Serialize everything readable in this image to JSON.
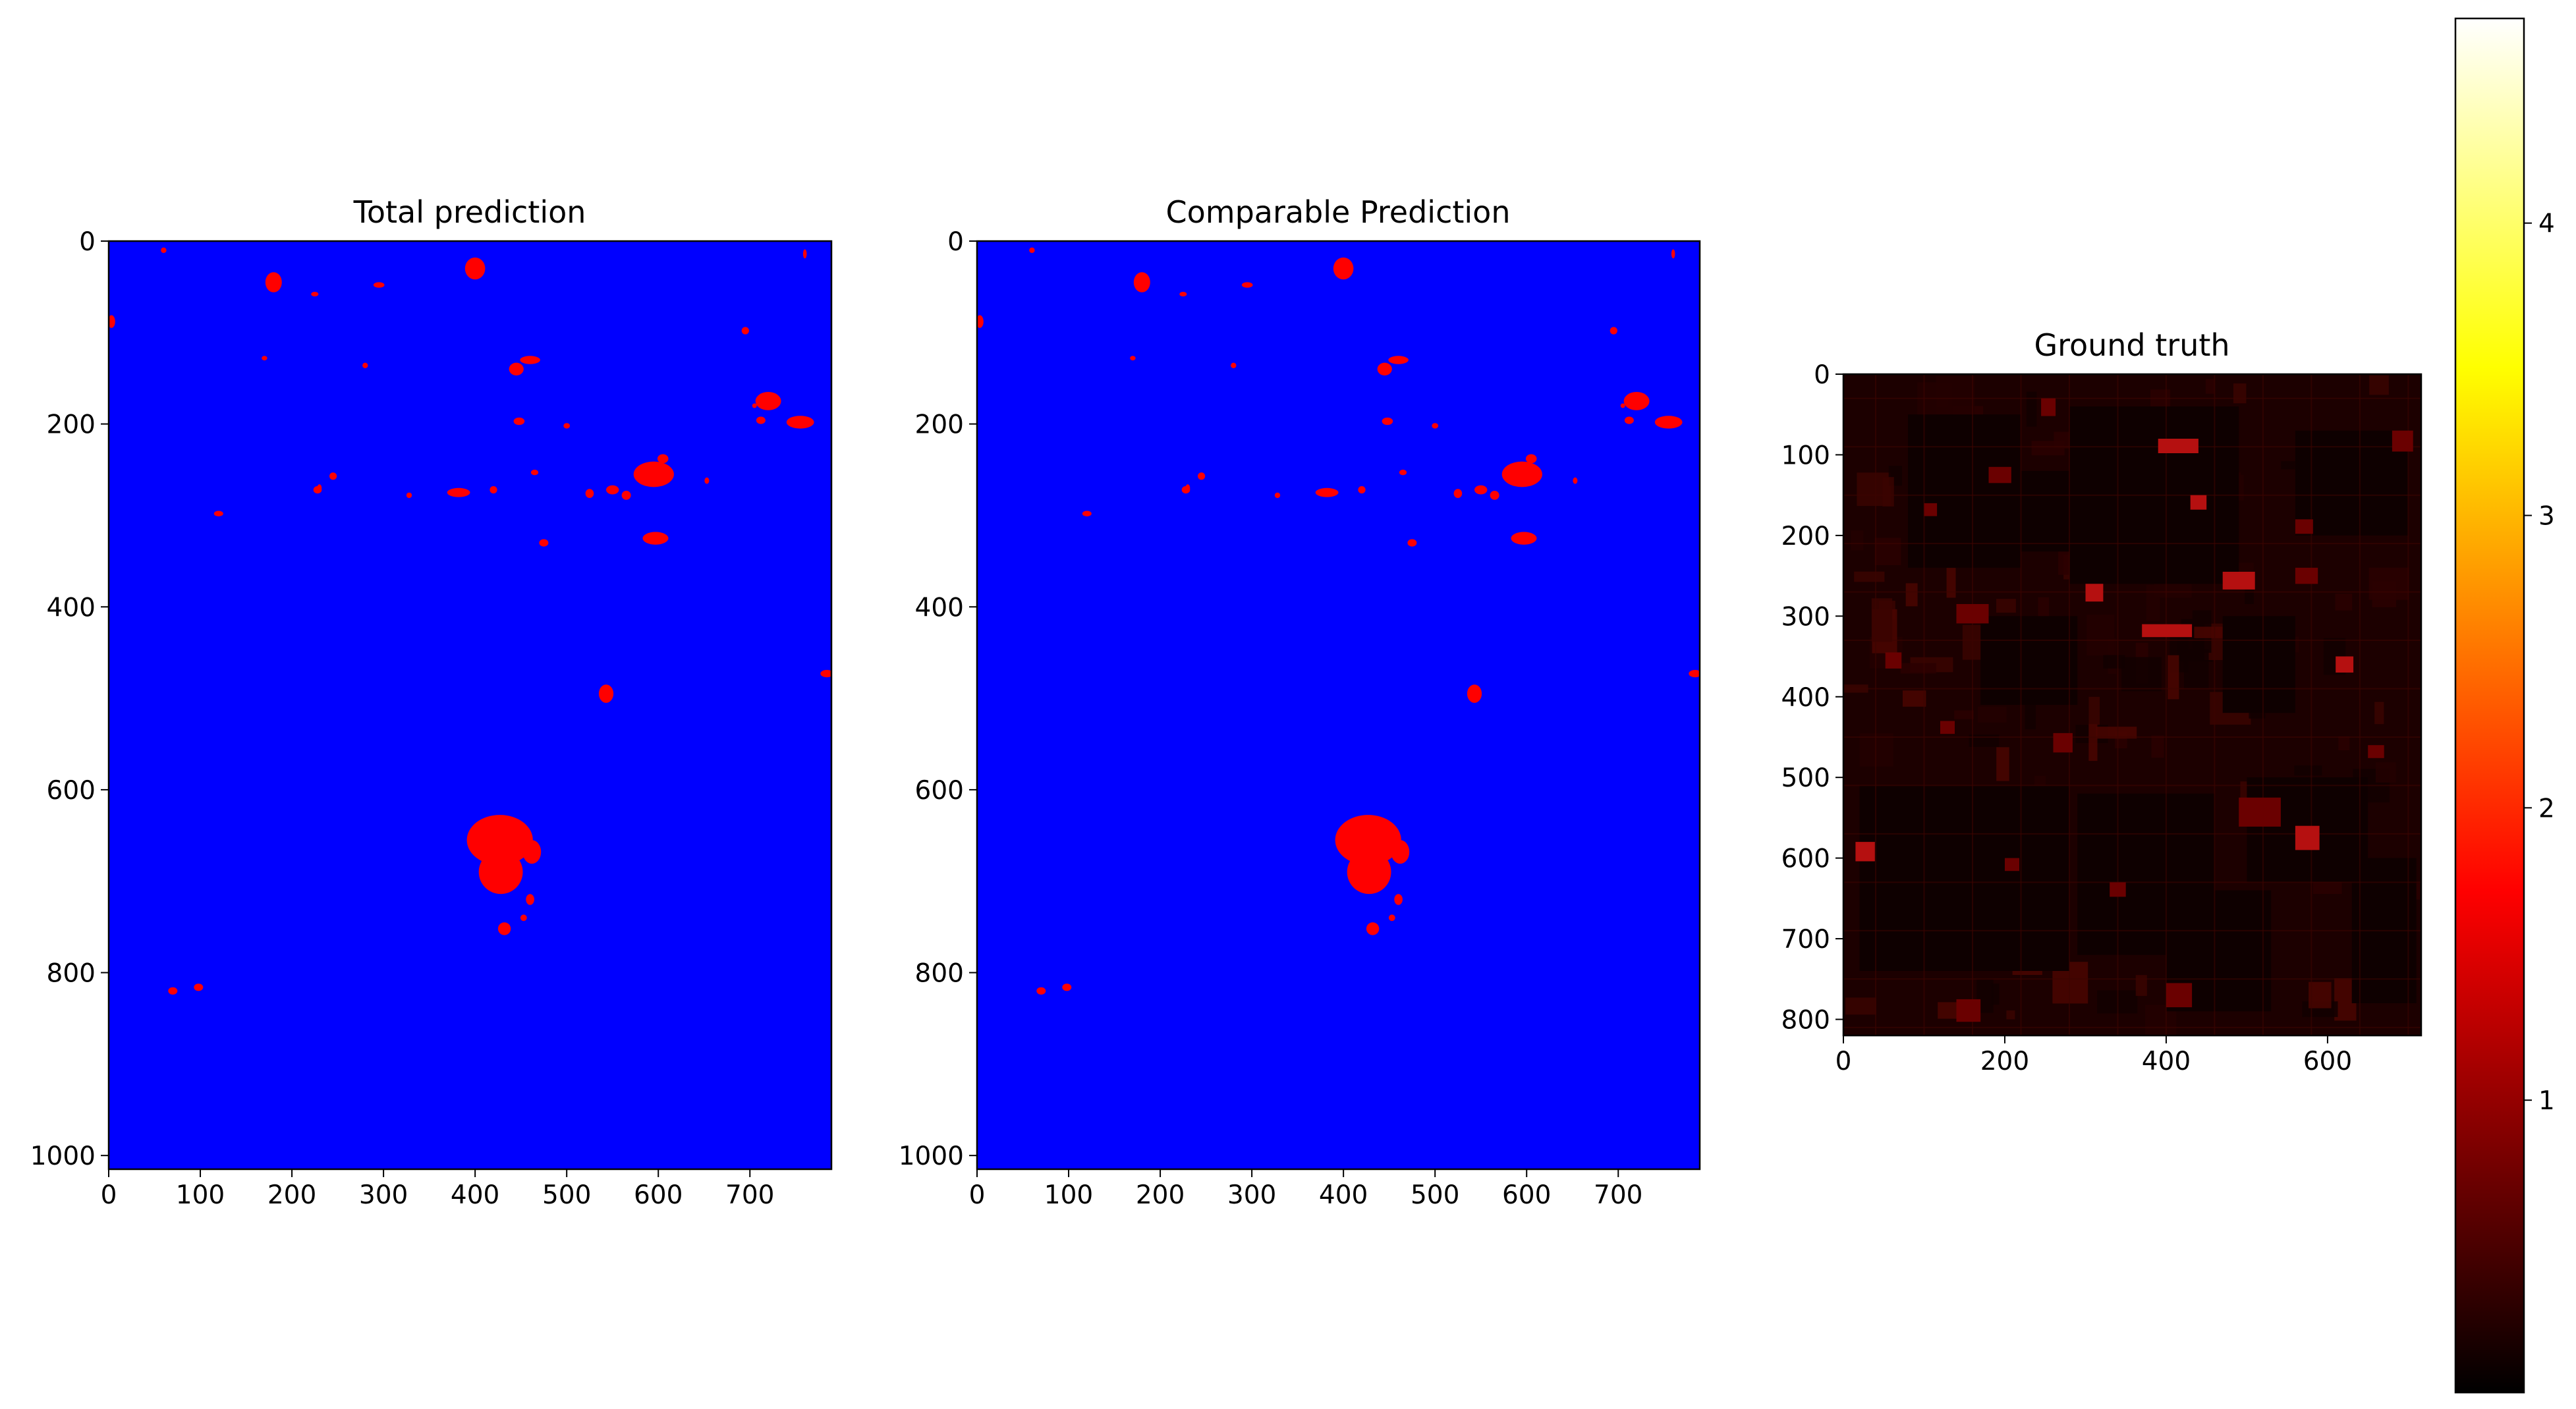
{
  "chart_data": [
    {
      "type": "heatmap",
      "title": "Total prediction",
      "xlabel": "",
      "ylabel": "",
      "xlim": [
        0,
        789
      ],
      "ylim": [
        1015,
        0
      ],
      "xticks": [
        0,
        100,
        200,
        300,
        400,
        500,
        600,
        700
      ],
      "yticks": [
        0,
        200,
        400,
        600,
        800,
        1000
      ],
      "grid": false,
      "colors": {
        "background": "#0000ff",
        "foreground": "#ff0000"
      },
      "regions": [
        [
          400,
          30,
          22,
          24
        ],
        [
          295,
          48,
          12,
          6
        ],
        [
          180,
          45,
          18,
          22
        ],
        [
          225,
          58,
          8,
          5
        ],
        [
          460,
          130,
          22,
          9
        ],
        [
          445,
          140,
          16,
          14
        ],
        [
          245,
          257,
          8,
          8
        ],
        [
          228,
          272,
          9,
          8
        ],
        [
          595,
          255,
          44,
          28
        ],
        [
          605,
          238,
          12,
          10
        ],
        [
          550,
          272,
          14,
          10
        ],
        [
          565,
          278,
          10,
          10
        ],
        [
          525,
          276,
          9,
          10
        ],
        [
          597,
          325,
          28,
          14
        ],
        [
          382,
          275,
          25,
          10
        ],
        [
          420,
          272,
          8,
          8
        ],
        [
          475,
          330,
          10,
          8
        ],
        [
          720,
          175,
          28,
          20
        ],
        [
          755,
          198,
          30,
          14
        ],
        [
          712,
          196,
          10,
          8
        ],
        [
          448,
          197,
          12,
          8
        ],
        [
          500,
          202,
          7,
          6
        ],
        [
          543,
          495,
          16,
          20
        ],
        [
          465,
          253,
          8,
          6
        ],
        [
          427,
          655,
          72,
          55
        ],
        [
          428,
          690,
          48,
          48
        ],
        [
          462,
          668,
          20,
          26
        ],
        [
          460,
          720,
          9,
          12
        ],
        [
          453,
          740,
          7,
          7
        ],
        [
          432,
          752,
          14,
          14
        ],
        [
          98,
          816,
          10,
          8
        ],
        [
          70,
          820,
          10,
          8
        ],
        [
          784,
          473,
          14,
          8
        ],
        [
          60,
          10,
          6,
          6
        ],
        [
          3,
          88,
          8,
          14
        ],
        [
          120,
          298,
          10,
          6
        ],
        [
          280,
          136,
          6,
          6
        ],
        [
          170,
          128,
          6,
          5
        ],
        [
          328,
          278,
          6,
          6
        ],
        [
          695,
          98,
          8,
          8
        ],
        [
          760,
          14,
          4,
          10
        ],
        [
          705,
          180,
          5,
          5
        ],
        [
          230,
          270,
          5,
          8
        ],
        [
          653,
          262,
          5,
          7
        ]
      ]
    },
    {
      "type": "heatmap",
      "title": "Comparable Prediction",
      "xlabel": "",
      "ylabel": "",
      "xlim": [
        0,
        789
      ],
      "ylim": [
        1015,
        0
      ],
      "xticks": [
        0,
        100,
        200,
        300,
        400,
        500,
        600,
        700
      ],
      "yticks": [
        0,
        200,
        400,
        600,
        800,
        1000
      ],
      "grid": false,
      "colors": {
        "background": "#0000ff",
        "foreground": "#ff0000"
      },
      "regions": [
        [
          400,
          30,
          22,
          24
        ],
        [
          295,
          48,
          12,
          6
        ],
        [
          180,
          45,
          18,
          22
        ],
        [
          225,
          58,
          8,
          5
        ],
        [
          460,
          130,
          22,
          9
        ],
        [
          445,
          140,
          16,
          14
        ],
        [
          245,
          257,
          8,
          8
        ],
        [
          228,
          272,
          9,
          8
        ],
        [
          595,
          255,
          44,
          28
        ],
        [
          605,
          238,
          12,
          10
        ],
        [
          550,
          272,
          14,
          10
        ],
        [
          565,
          278,
          10,
          10
        ],
        [
          525,
          276,
          9,
          10
        ],
        [
          597,
          325,
          28,
          14
        ],
        [
          382,
          275,
          25,
          10
        ],
        [
          420,
          272,
          8,
          8
        ],
        [
          475,
          330,
          10,
          8
        ],
        [
          720,
          175,
          28,
          20
        ],
        [
          755,
          198,
          30,
          14
        ],
        [
          712,
          196,
          10,
          8
        ],
        [
          448,
          197,
          12,
          8
        ],
        [
          500,
          202,
          7,
          6
        ],
        [
          543,
          495,
          16,
          20
        ],
        [
          465,
          253,
          8,
          6
        ],
        [
          427,
          655,
          72,
          55
        ],
        [
          428,
          690,
          48,
          48
        ],
        [
          462,
          668,
          20,
          26
        ],
        [
          460,
          720,
          9,
          12
        ],
        [
          453,
          740,
          7,
          7
        ],
        [
          432,
          752,
          14,
          14
        ],
        [
          98,
          816,
          10,
          8
        ],
        [
          70,
          820,
          10,
          8
        ],
        [
          784,
          473,
          14,
          8
        ],
        [
          60,
          10,
          6,
          6
        ],
        [
          3,
          88,
          8,
          14
        ],
        [
          120,
          298,
          10,
          6
        ],
        [
          280,
          136,
          6,
          6
        ],
        [
          170,
          128,
          6,
          5
        ],
        [
          328,
          278,
          6,
          6
        ],
        [
          695,
          98,
          8,
          8
        ],
        [
          760,
          14,
          4,
          10
        ],
        [
          705,
          180,
          5,
          5
        ],
        [
          230,
          270,
          5,
          8
        ],
        [
          653,
          262,
          5,
          7
        ]
      ]
    },
    {
      "type": "heatmap",
      "title": "Ground truth",
      "xlabel": "",
      "ylabel": "",
      "xlim": [
        0,
        716
      ],
      "ylim": [
        820,
        0
      ],
      "xticks": [
        0,
        200,
        400,
        600
      ],
      "yticks": [
        0,
        100,
        200,
        300,
        400,
        500,
        600,
        700,
        800
      ],
      "grid": false,
      "colormap": "hot",
      "colors": {
        "base": "#1c0000",
        "field_dark": "#0e0000",
        "field_mid": "#350200",
        "patch": "#6a0000",
        "bright": "#b51010"
      },
      "dark_fields": [
        [
          80,
          50,
          140,
          190
        ],
        [
          280,
          40,
          210,
          220
        ],
        [
          560,
          70,
          140,
          130
        ],
        [
          170,
          300,
          120,
          110
        ],
        [
          20,
          510,
          260,
          230
        ],
        [
          290,
          520,
          170,
          200
        ],
        [
          500,
          500,
          150,
          130
        ],
        [
          630,
          600,
          80,
          180
        ],
        [
          400,
          640,
          130,
          150
        ],
        [
          220,
          120,
          60,
          100
        ],
        [
          360,
          80,
          90,
          120
        ],
        [
          470,
          300,
          90,
          120
        ]
      ],
      "bright_patches": [
        [
          390,
          80,
          50,
          18
        ],
        [
          180,
          115,
          28,
          20
        ],
        [
          245,
          30,
          18,
          22
        ],
        [
          370,
          310,
          62,
          16
        ],
        [
          490,
          525,
          52,
          36
        ],
        [
          140,
          285,
          40,
          24
        ],
        [
          470,
          245,
          40,
          22
        ],
        [
          560,
          240,
          28,
          20
        ],
        [
          260,
          445,
          24,
          24
        ],
        [
          560,
          560,
          30,
          30
        ],
        [
          400,
          755,
          32,
          30
        ],
        [
          140,
          775,
          30,
          28
        ],
        [
          300,
          260,
          22,
          22
        ],
        [
          52,
          345,
          20,
          20
        ],
        [
          680,
          70,
          26,
          26
        ],
        [
          15,
          580,
          24,
          24
        ],
        [
          100,
          160,
          16,
          16
        ],
        [
          330,
          630,
          20,
          18
        ],
        [
          610,
          350,
          22,
          20
        ],
        [
          200,
          600,
          18,
          16
        ],
        [
          560,
          180,
          22,
          18
        ],
        [
          430,
          150,
          20,
          18
        ],
        [
          120,
          430,
          18,
          16
        ],
        [
          650,
          460,
          20,
          16
        ]
      ]
    }
  ],
  "colorbar": {
    "colormap": "hot",
    "range": [
      0,
      4.7
    ],
    "ticks": [
      "1",
      "2",
      "3",
      "4"
    ],
    "tick_values": [
      1,
      2,
      3,
      4
    ]
  }
}
